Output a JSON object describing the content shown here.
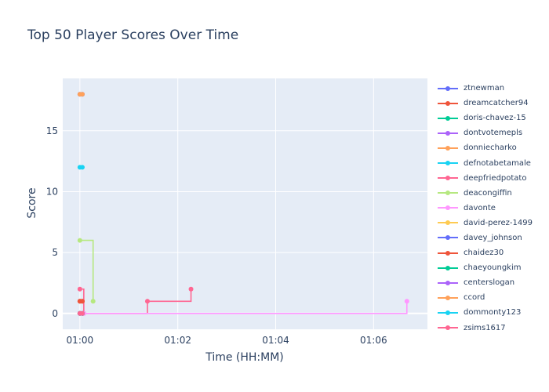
{
  "chart_data": {
    "type": "line",
    "title": "Top 50 Player Scores Over Time",
    "xlabel": "Time (HH:MM)",
    "ylabel": "Score",
    "x_ticks": [
      "01:00",
      "01:02",
      "01:04",
      "01:06"
    ],
    "y_ticks": [
      "0",
      "5",
      "10",
      "15"
    ],
    "xlim_minutes": [
      59.65,
      67.1
    ],
    "ylim": [
      -1.3,
      19.3
    ],
    "line_shape": "step",
    "grid": true,
    "legend_placement": "right",
    "series": [
      {
        "name": "ztnewman",
        "color": "#636efa",
        "points": [
          [
            60.0,
            18
          ],
          [
            60.05,
            18
          ]
        ]
      },
      {
        "name": "dreamcatcher94",
        "color": "#ef553b",
        "points": [
          [
            60.0,
            1
          ],
          [
            60.05,
            1
          ]
        ]
      },
      {
        "name": "doris-chavez-15",
        "color": "#00cc96",
        "points": [
          [
            60.0,
            0
          ],
          [
            60.05,
            0
          ]
        ]
      },
      {
        "name": "dontvotemepls",
        "color": "#ab63fa",
        "points": [
          [
            60.0,
            0
          ],
          [
            60.05,
            0
          ]
        ]
      },
      {
        "name": "donniecharko",
        "color": "#ffa15a",
        "points": [
          [
            60.0,
            18
          ],
          [
            60.05,
            18
          ]
        ]
      },
      {
        "name": "defnotabetamale",
        "color": "#19d3f3",
        "points": [
          [
            60.0,
            12
          ],
          [
            60.05,
            12
          ]
        ]
      },
      {
        "name": "deepfriedpotato",
        "color": "#ff6692",
        "points": [
          [
            60.0,
            2
          ],
          [
            60.08,
            0
          ],
          [
            61.38,
            1
          ],
          [
            62.27,
            2
          ]
        ]
      },
      {
        "name": "deacongiffin",
        "color": "#b6e880",
        "points": [
          [
            60.0,
            6
          ],
          [
            60.27,
            1
          ]
        ]
      },
      {
        "name": "davonte",
        "color": "#ff97ff",
        "points": [
          [
            60.08,
            0
          ],
          [
            66.68,
            1
          ]
        ]
      },
      {
        "name": "david-perez-1499",
        "color": "#fecb52",
        "points": [
          [
            60.0,
            0
          ],
          [
            60.05,
            0
          ]
        ]
      },
      {
        "name": "davey_johnson",
        "color": "#636efa",
        "points": [
          [
            60.0,
            0
          ],
          [
            60.05,
            0
          ]
        ]
      },
      {
        "name": "chaidez30",
        "color": "#ef553b",
        "points": [
          [
            60.0,
            1
          ],
          [
            60.05,
            1
          ]
        ]
      },
      {
        "name": "chaeyoungkim",
        "color": "#00cc96",
        "points": [
          [
            60.0,
            0
          ],
          [
            60.05,
            0
          ]
        ]
      },
      {
        "name": "centerslogan",
        "color": "#ab63fa",
        "points": [
          [
            60.0,
            0
          ],
          [
            60.05,
            0
          ]
        ]
      },
      {
        "name": "ccord",
        "color": "#ffa15a",
        "points": [
          [
            60.0,
            0
          ],
          [
            60.05,
            0
          ]
        ]
      },
      {
        "name": "dommonty123",
        "color": "#19d3f3",
        "points": [
          [
            60.0,
            0
          ],
          [
            60.05,
            0
          ]
        ]
      },
      {
        "name": "zsims1617",
        "color": "#ff6692",
        "points": [
          [
            60.0,
            0
          ],
          [
            60.05,
            0
          ]
        ]
      }
    ]
  }
}
